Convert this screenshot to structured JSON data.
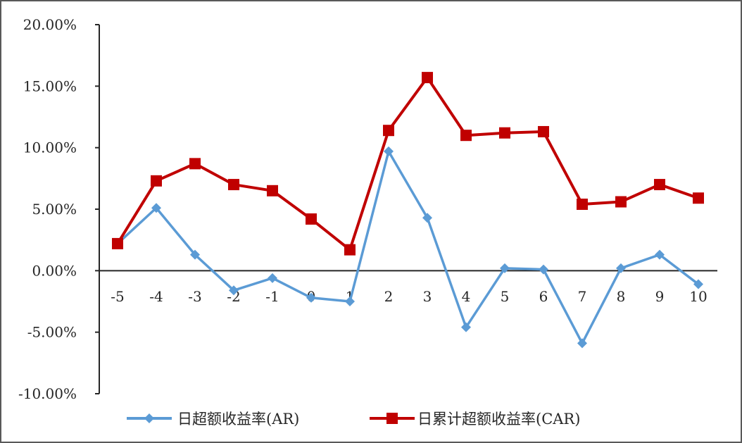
{
  "chart_data": {
    "type": "line",
    "categories": [
      "-5",
      "-4",
      "-3",
      "-2",
      "-1",
      "0",
      "1",
      "2",
      "3",
      "4",
      "5",
      "6",
      "7",
      "8",
      "9",
      "10"
    ],
    "series": [
      {
        "name": "日超额收益率(AR)",
        "color": "#5b9bd5",
        "marker": "diamond",
        "values": [
          2.2,
          5.1,
          1.3,
          -1.6,
          -0.6,
          -2.2,
          -2.5,
          9.7,
          4.3,
          -4.6,
          0.2,
          0.1,
          -5.9,
          0.2,
          1.3,
          -1.1
        ]
      },
      {
        "name": "日累计超额收益率(CAR)",
        "color": "#c00000",
        "marker": "square",
        "values": [
          2.2,
          7.3,
          8.7,
          7.0,
          6.5,
          4.2,
          1.7,
          11.4,
          15.7,
          11.0,
          11.2,
          11.3,
          5.4,
          5.6,
          7.0,
          5.9
        ]
      }
    ],
    "y_ticks": [
      "20.00%",
      "15.00%",
      "10.00%",
      "5.00%",
      "0.00%",
      "-5.00%",
      "-10.00%"
    ],
    "ylim": [
      -10,
      20
    ],
    "title": "",
    "xlabel": "",
    "ylabel": "",
    "grid": false,
    "legend_position": "bottom"
  }
}
